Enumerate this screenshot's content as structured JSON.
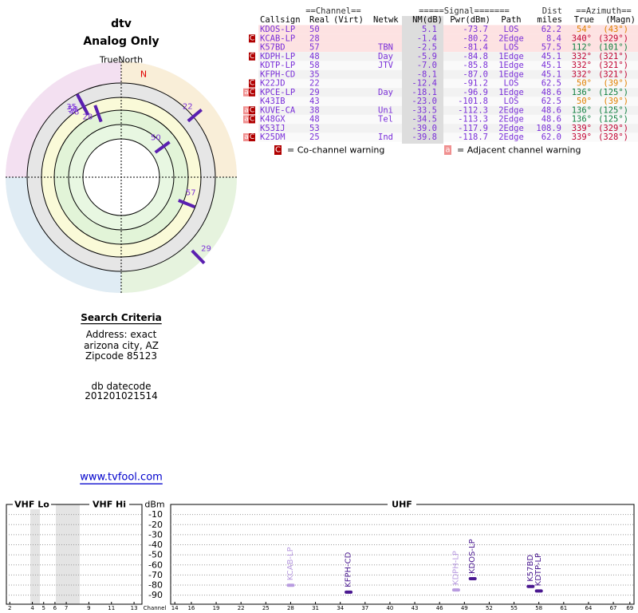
{
  "header": {
    "title": "dtv",
    "subtitle": "Analog Only"
  },
  "table": {
    "header_top": [
      "==Channel==",
      "=====Signal=======",
      "Dist",
      "==Azimuth=="
    ],
    "header": [
      "Callsign",
      "Real",
      "(Virt)",
      "Netwk",
      "NM(dB)",
      "Pwr(dBm)",
      "Path",
      "miles",
      "True",
      "(Magn)"
    ],
    "rows": [
      {
        "callsign": "KDOS-LP",
        "real": "50",
        "nm": "5.1",
        "pwr": "-73.7",
        "path": "LOS",
        "dist": "62.2",
        "az_true": "54°",
        "az_magn": "(43°)",
        "az_color": "#e08000"
      },
      {
        "flags": [
          "C"
        ],
        "callsign": "KCAB-LP",
        "real": "28",
        "nm": "-1.4",
        "pwr": "-80.2",
        "path": "2Edge",
        "dist": "8.4",
        "az_true": "340°",
        "az_magn": "(329°)",
        "az_color": "#c00030"
      },
      {
        "callsign": "K57BD",
        "real": "57",
        "netwk": "TBN",
        "nm": "-2.5",
        "pwr": "-81.4",
        "path": "LOS",
        "dist": "57.5",
        "az_true": "112°",
        "az_magn": "(101°)",
        "az_color": "#108040"
      },
      {
        "flags": [
          "C"
        ],
        "callsign": "KDPH-LP",
        "real": "48",
        "netwk": "Day",
        "nm": "-5.9",
        "pwr": "-84.8",
        "path": "1Edge",
        "dist": "45.1",
        "az_true": "332°",
        "az_magn": "(321°)",
        "az_color": "#c00030"
      },
      {
        "callsign": "KDTP-LP",
        "real": "58",
        "netwk": "JTV",
        "nm": "-7.0",
        "pwr": "-85.8",
        "path": "1Edge",
        "dist": "45.1",
        "az_true": "332°",
        "az_magn": "(321°)",
        "az_color": "#c00030"
      },
      {
        "callsign": "KFPH-CD",
        "real": "35",
        "nm": "-8.1",
        "pwr": "-87.0",
        "path": "1Edge",
        "dist": "45.1",
        "az_true": "332°",
        "az_magn": "(321°)",
        "az_color": "#c00030"
      },
      {
        "flags": [
          "C"
        ],
        "callsign": "K22JD",
        "real": "22",
        "nm": "-12.4",
        "pwr": "-91.2",
        "path": "LOS",
        "dist": "62.5",
        "az_true": "50°",
        "az_magn": "(39°)",
        "az_color": "#e08000"
      },
      {
        "flags": [
          "a",
          "C"
        ],
        "callsign": "KPCE-LP",
        "real": "29",
        "netwk": "Day",
        "nm": "-18.1",
        "pwr": "-96.9",
        "path": "1Edge",
        "dist": "48.6",
        "az_true": "136°",
        "az_magn": "(125°)",
        "az_color": "#108040"
      },
      {
        "callsign": "K43IB",
        "real": "43",
        "nm": "-23.0",
        "pwr": "-101.8",
        "path": "LOS",
        "dist": "62.5",
        "az_true": "50°",
        "az_magn": "(39°)",
        "az_color": "#e08000"
      },
      {
        "flags": [
          "a",
          "C"
        ],
        "callsign": "KUVE-CA",
        "real": "38",
        "netwk": "Uni",
        "nm": "-33.5",
        "pwr": "-112.3",
        "path": "2Edge",
        "dist": "48.6",
        "az_true": "136°",
        "az_magn": "(125°)",
        "az_color": "#108040"
      },
      {
        "flags": [
          "a",
          "C"
        ],
        "callsign": "K48GX",
        "real": "48",
        "netwk": "Tel",
        "nm": "-34.5",
        "pwr": "-113.3",
        "path": "2Edge",
        "dist": "48.6",
        "az_true": "136°",
        "az_magn": "(125°)",
        "az_color": "#108040"
      },
      {
        "callsign": "K53IJ",
        "real": "53",
        "nm": "-39.0",
        "pwr": "-117.9",
        "path": "2Edge",
        "dist": "108.9",
        "az_true": "339°",
        "az_magn": "(329°)",
        "az_color": "#c00030"
      },
      {
        "flags": [
          "a",
          "C"
        ],
        "callsign": "K25DM",
        "real": "25",
        "netwk": "Ind",
        "nm": "-39.8",
        "pwr": "-118.7",
        "path": "2Edge",
        "dist": "62.0",
        "az_true": "339°",
        "az_magn": "(328°)",
        "az_color": "#c00030"
      }
    ],
    "legend": [
      {
        "symbol": "C",
        "text": "= Co-channel warning",
        "color": "#b00000"
      },
      {
        "symbol": "a",
        "text": "= Adjacent channel warning",
        "color": "#f09090"
      }
    ]
  },
  "search": {
    "title": "Search Criteria",
    "lines": [
      "Address: exact",
      "arizona city, AZ",
      "Zipcode 85123"
    ],
    "datecode_label": "db datecode",
    "datecode": "201201021514"
  },
  "link": "www.tvfool.com",
  "chart_data": [
    {
      "type": "polar",
      "title": "TrueNorth",
      "north_label": "N",
      "labels": [
        "35",
        "58",
        "48",
        "28",
        "22",
        "50",
        "57",
        "29"
      ],
      "azimuth": [
        332,
        332,
        332,
        340,
        50,
        54,
        112,
        136
      ],
      "values": [
        -8.1,
        -7.0,
        -5.9,
        -1.4,
        -12.4,
        5.1,
        -2.5,
        -18.1
      ],
      "rlim": [
        10,
        -20
      ],
      "color": "#5a1fb0"
    },
    {
      "type": "spectrum",
      "ylabel": "dBm",
      "xlabel": "Channel",
      "panels": [
        "VHF Lo",
        "VHF Hi",
        "UHF"
      ],
      "ylim": [
        -99,
        0
      ],
      "yticks": [
        -10,
        -20,
        -30,
        -40,
        -50,
        -60,
        -70,
        -80,
        -90
      ],
      "vhf_xlim": [
        1.7,
        13.7
      ],
      "vhf_xticks": [
        2,
        4,
        5,
        6,
        7,
        9,
        11,
        13
      ],
      "xlim": [
        13.5,
        69.5
      ],
      "xticks": [
        14,
        16,
        19,
        22,
        25,
        28,
        31,
        34,
        37,
        40,
        43,
        46,
        49,
        52,
        55,
        58,
        61,
        64,
        67,
        69
      ],
      "labels": [
        "KCAB-LP",
        "KFPH-CD",
        "KDPH-LP",
        "KDOS-LP",
        "K57BD",
        "KDTP-LP"
      ],
      "x": [
        28,
        35,
        48,
        50,
        57,
        58
      ],
      "values": [
        -80.2,
        -87.0,
        -84.8,
        -73.7,
        -81.4,
        -85.8
      ],
      "colors": [
        "#b89be0",
        "#4a1890",
        "#b89be0",
        "#4a1890",
        "#4a1890",
        "#4a1890"
      ]
    }
  ]
}
